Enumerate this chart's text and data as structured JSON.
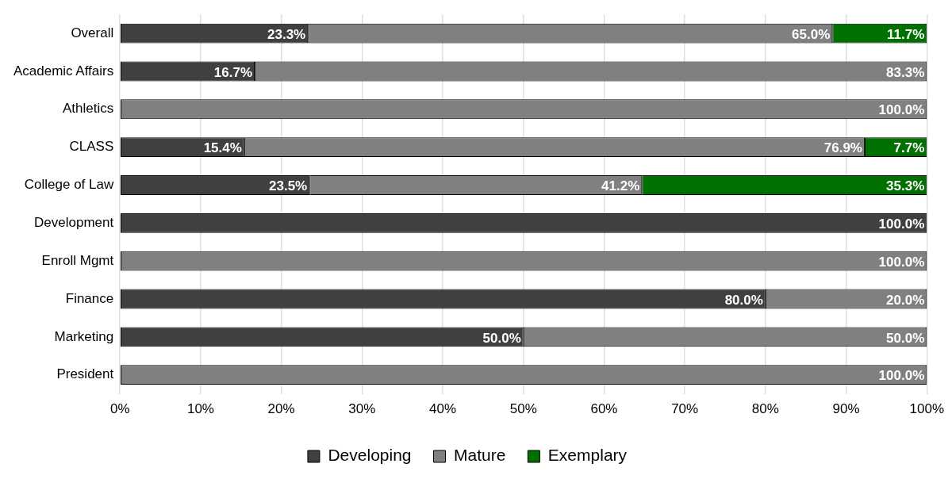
{
  "chart_data": {
    "type": "bar",
    "orientation": "horizontal",
    "stacked": true,
    "categories": [
      "Overall",
      "Academic Affairs",
      "Athletics",
      "CLASS",
      "College of Law",
      "Development",
      "Enroll Mgmt",
      "Finance",
      "Marketing",
      "President"
    ],
    "series": [
      {
        "name": "Developing",
        "color": "#404040",
        "values": [
          23.3,
          16.7,
          0,
          15.4,
          23.5,
          100,
          0,
          80,
          50,
          0
        ],
        "value_labels": [
          "23.3%",
          "16.7%",
          null,
          "15.4%",
          "23.5%",
          "100.0%",
          null,
          "80.0%",
          "50.0%",
          null
        ]
      },
      {
        "name": "Mature",
        "color": "#808080",
        "values": [
          65,
          83.3,
          100,
          76.9,
          41.2,
          0,
          100,
          20,
          50,
          100
        ],
        "value_labels": [
          "65.0%",
          "83.3%",
          "100.0%",
          "76.9%",
          "41.2%",
          null,
          "100.0%",
          "20.0%",
          "50.0%",
          "100.0%"
        ]
      },
      {
        "name": "Exemplary",
        "color": "#007000",
        "values": [
          11.7,
          0,
          0,
          7.7,
          35.3,
          0,
          0,
          0,
          0,
          0
        ],
        "value_labels": [
          "11.7%",
          null,
          null,
          "7.7%",
          "35.3%",
          null,
          null,
          null,
          null,
          null
        ]
      }
    ],
    "xlim": [
      0,
      100
    ],
    "xticks": [
      {
        "value": 0,
        "label": "0%"
      },
      {
        "value": 10,
        "label": "10%"
      },
      {
        "value": 20,
        "label": "20%"
      },
      {
        "value": 30,
        "label": "30%"
      },
      {
        "value": 40,
        "label": "40%"
      },
      {
        "value": 50,
        "label": "50%"
      },
      {
        "value": 60,
        "label": "60%"
      },
      {
        "value": 70,
        "label": "70%"
      },
      {
        "value": 80,
        "label": "80%"
      },
      {
        "value": 90,
        "label": "90%"
      },
      {
        "value": 100,
        "label": "100%"
      }
    ],
    "grid": "x",
    "legend": "bottom"
  }
}
